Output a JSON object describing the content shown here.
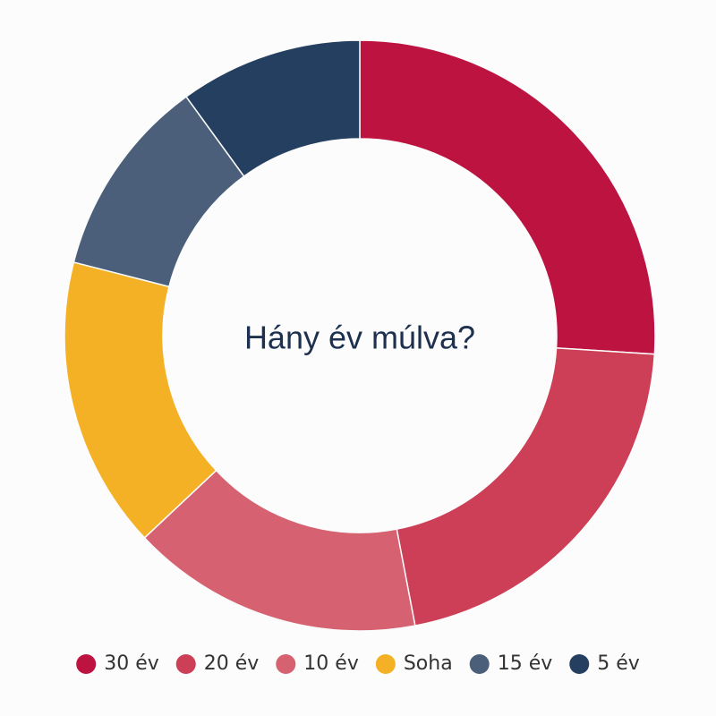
{
  "chart_data": {
    "type": "donut",
    "title": "Hány év múlva?",
    "categories": [
      "30 év",
      "20 év",
      "10 év",
      "Soha",
      "15 év",
      "5 év"
    ],
    "values": [
      26,
      21,
      16,
      16,
      11,
      10
    ],
    "colors": [
      "#bc1340",
      "#cc3f56",
      "#d66170",
      "#f4b125",
      "#4b5f7a",
      "#243f5f"
    ],
    "legend": "bottom"
  }
}
